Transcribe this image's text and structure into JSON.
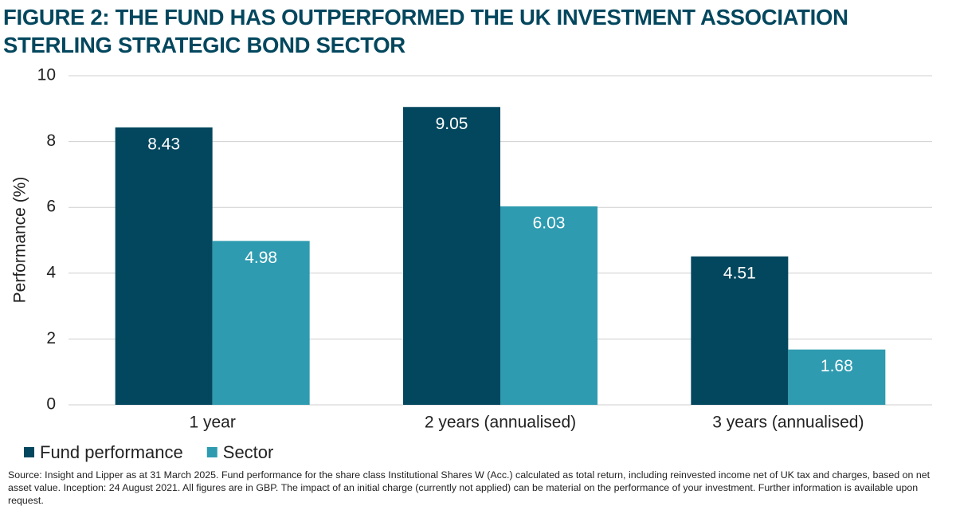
{
  "chart_data": {
    "type": "bar",
    "title": "FIGURE 2: THE FUND HAS OUTPERFORMED THE UK INVESTMENT ASSOCIATION STERLING STRATEGIC BOND SECTOR",
    "y_label": "Performance (%)",
    "categories": [
      "1 year",
      "2 years (annualised)",
      "3 years (annualised)"
    ],
    "series": [
      {
        "name": "Fund performance",
        "color": "#03475e",
        "values": [
          8.43,
          9.05,
          4.51
        ]
      },
      {
        "name": "Sector",
        "color": "#2e9bb0",
        "values": [
          4.98,
          6.03,
          1.68
        ]
      }
    ],
    "ylim": [
      0,
      10
    ],
    "yticks": [
      0,
      2,
      4,
      6,
      8,
      10
    ],
    "grid": true,
    "source": "Source: Insight and Lipper as at 31 March 2025. Fund performance for the share class Institutional Shares W (Acc.) calculated as total return, including reinvested income net of UK tax and charges, based on net asset value. Inception: 24 August 2021. All figures are in GBP. The impact of an initial charge (currently not applied) can be material on the performance of your investment. Further information is available upon request."
  }
}
